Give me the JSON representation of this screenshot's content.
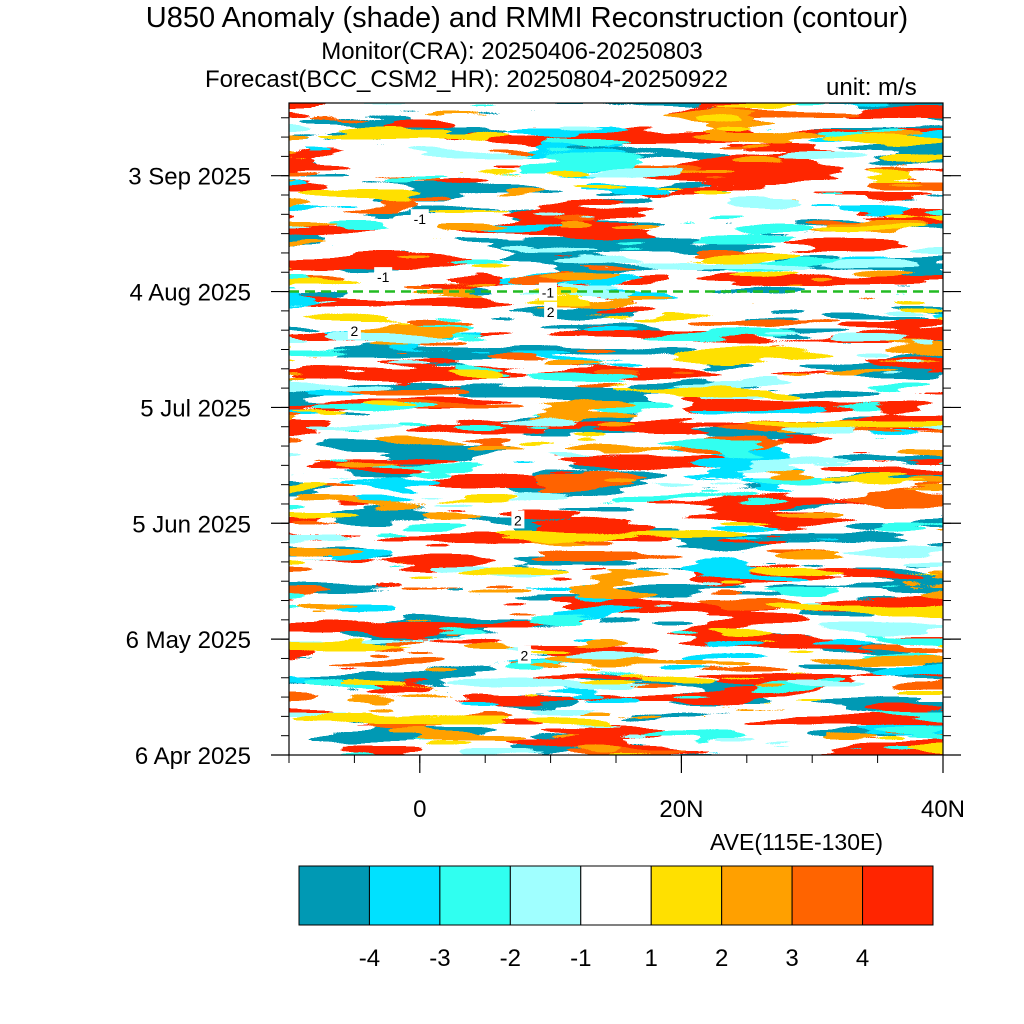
{
  "title": "U850 Anomaly (shade) and RMMI Reconstruction (contour)",
  "subtitle_monitor": "Monitor(CRA): 20250406-20250803",
  "subtitle_forecast": "Forecast(BCC_CSM2_HR): 20250804-20250922",
  "units_label": "unit: m/s",
  "region_label": "AVE(115E-130E)",
  "chart_data": {
    "type": "heatmap",
    "x_axis": {
      "range": [
        -10,
        40
      ],
      "tick_values": [
        0,
        20,
        40
      ],
      "tick_labels": [
        "0",
        "20N",
        "40N"
      ]
    },
    "y_axis": {
      "range": [
        "2025-04-06",
        "2025-09-22"
      ],
      "tick_labels": [
        "6 Apr 2025",
        "6 May 2025",
        "5 Jun 2025",
        "5 Jul 2025",
        "4 Aug 2025",
        "3 Sep 2025"
      ],
      "tick_days": [
        0,
        30,
        60,
        90,
        120,
        150
      ]
    },
    "forecast_start": "2025-08-04",
    "colorbar": {
      "boundaries": [
        "-4",
        "-3",
        "-2",
        "-1",
        "1",
        "2",
        "3",
        "4"
      ],
      "colors": [
        "#0099b4",
        "#00e1ff",
        "#30fff0",
        "#a0ffff",
        "#ffffff",
        "#ffe000",
        "#ffa000",
        "#ff6400",
        "#ff2500"
      ]
    },
    "contour_labels": [
      {
        "text": "2",
        "x": 8,
        "day": 26
      },
      {
        "text": "2",
        "x": 7.5,
        "day": 61
      },
      {
        "text": "2",
        "x": -5,
        "day": 110
      },
      {
        "text": "2",
        "x": 10,
        "day": 115
      },
      {
        "text": "-1",
        "x": 9.8,
        "day": 120
      },
      {
        "text": "-1",
        "x": -2.8,
        "day": 124
      },
      {
        "text": "-1",
        "x": 0,
        "day": 139
      }
    ]
  }
}
